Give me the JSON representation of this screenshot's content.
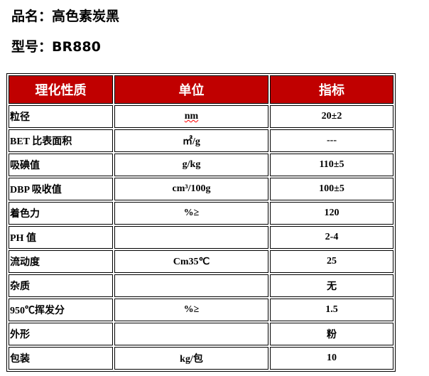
{
  "product_name": {
    "label": "品名：",
    "value": "高色素炭黑"
  },
  "model": {
    "label": "型号：",
    "value": "BR880"
  },
  "table": {
    "headers": [
      "理化性质",
      "单位",
      "指标"
    ],
    "rows": [
      [
        "粒径",
        "nm",
        "20±2"
      ],
      [
        "BET 比表面积",
        "㎡/g",
        "---"
      ],
      [
        "吸碘值",
        "g/kg",
        "110±5"
      ],
      [
        "DBP 吸收值",
        "cm³/100g",
        "100±5"
      ],
      [
        "着色力",
        "%≥",
        "120"
      ],
      [
        "PH 值",
        "",
        "2-4"
      ],
      [
        "流动度",
        "Cm35℃",
        "25"
      ],
      [
        "杂质",
        "",
        "无"
      ],
      [
        "950℃挥发分",
        "%≥",
        "1.5"
      ],
      [
        "外形",
        "",
        "粉"
      ],
      [
        "包装",
        "kg/包",
        "10"
      ]
    ],
    "header_color": "#c00000"
  }
}
